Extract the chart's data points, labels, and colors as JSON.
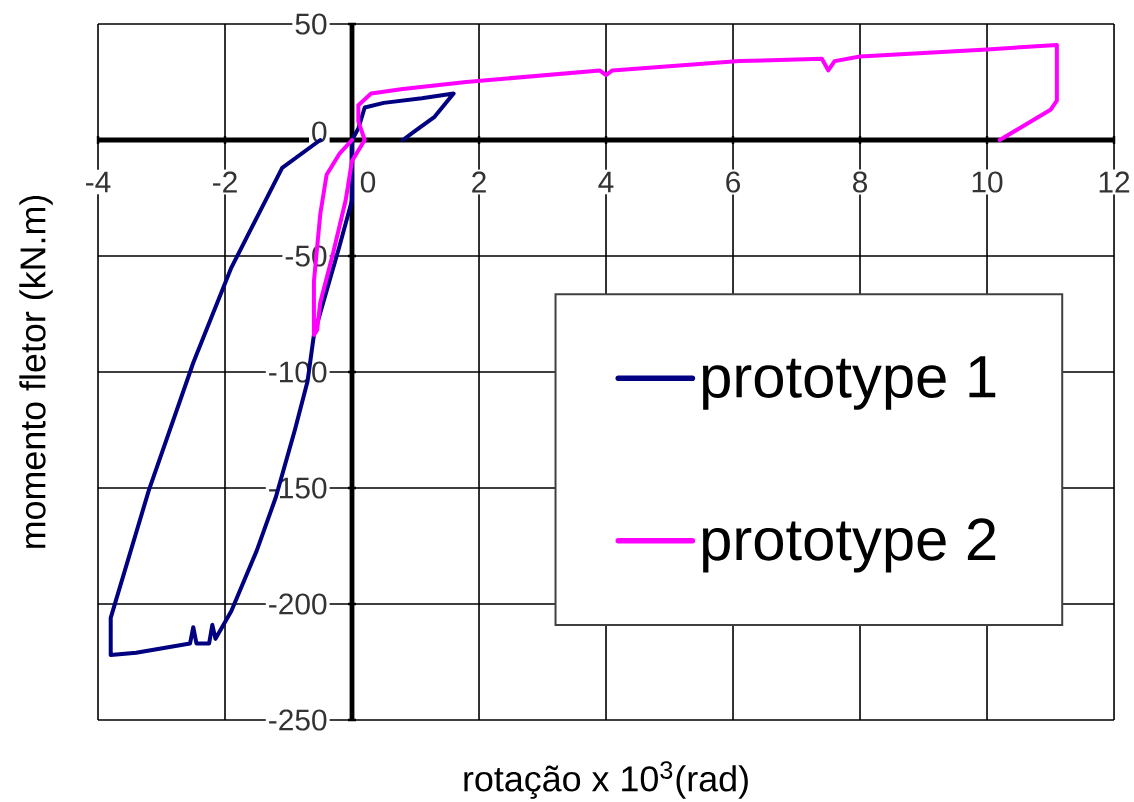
{
  "chart_data": {
    "type": "line",
    "xlabel": "rotação x 10$^{3}$(rad)",
    "ylabel": "momento fletor (kN.m)",
    "xlim": [
      -4,
      12
    ],
    "ylim": [
      -250,
      50
    ],
    "xticks": [
      -4,
      -2,
      0,
      2,
      4,
      6,
      8,
      10,
      12
    ],
    "yticks": [
      -250,
      -200,
      -150,
      -100,
      -50,
      0,
      50
    ],
    "grid": true,
    "legend": "bottom right",
    "series": [
      {
        "name": "prototype 1",
        "color": "#000080",
        "x": [
          0.8,
          1.0,
          1.3,
          1.6,
          1.1,
          0.5,
          0.2,
          0.1,
          0,
          0,
          -0.2,
          -0.6,
          -0.7,
          -0.9,
          -1.2,
          -1.5,
          -1.9,
          -2.15,
          -2.2,
          -2.25,
          -2.45,
          -2.5,
          -2.55,
          -3.4,
          -3.8,
          -3.8,
          -3.2,
          -2.5,
          -1.9,
          -1.1,
          -0.5
        ],
        "values": [
          0,
          4,
          10,
          20,
          18,
          16,
          14,
          5,
          0,
          -26,
          -46,
          -84,
          -104,
          -125,
          -154,
          -177,
          -203,
          -215,
          -209,
          -217,
          -217,
          -210,
          -217,
          -221,
          -222,
          -206,
          -151,
          -96,
          -55,
          -12,
          0
        ]
      },
      {
        "name": "prototype 2",
        "color": "#ff00ff",
        "x": [
          0,
          -0.2,
          -0.4,
          -0.5,
          -0.6,
          -0.6,
          -0.55,
          -0.5,
          -0.3,
          -0.1,
          0,
          0.2,
          0.1,
          0.1,
          0.3,
          0.8,
          1.8,
          3.9,
          4.0,
          4.1,
          6.1,
          7.4,
          7.5,
          7.6,
          8.0,
          10.0,
          11.1,
          11.1,
          11.0,
          10.2
        ],
        "values": [
          0,
          -6,
          -15,
          -32,
          -61,
          -84,
          -82,
          -70,
          -49,
          -26,
          -9,
          0,
          8,
          15,
          20,
          22,
          25,
          30,
          28,
          30,
          34,
          35,
          30,
          34,
          36,
          39,
          41,
          17,
          13,
          0
        ]
      }
    ]
  }
}
